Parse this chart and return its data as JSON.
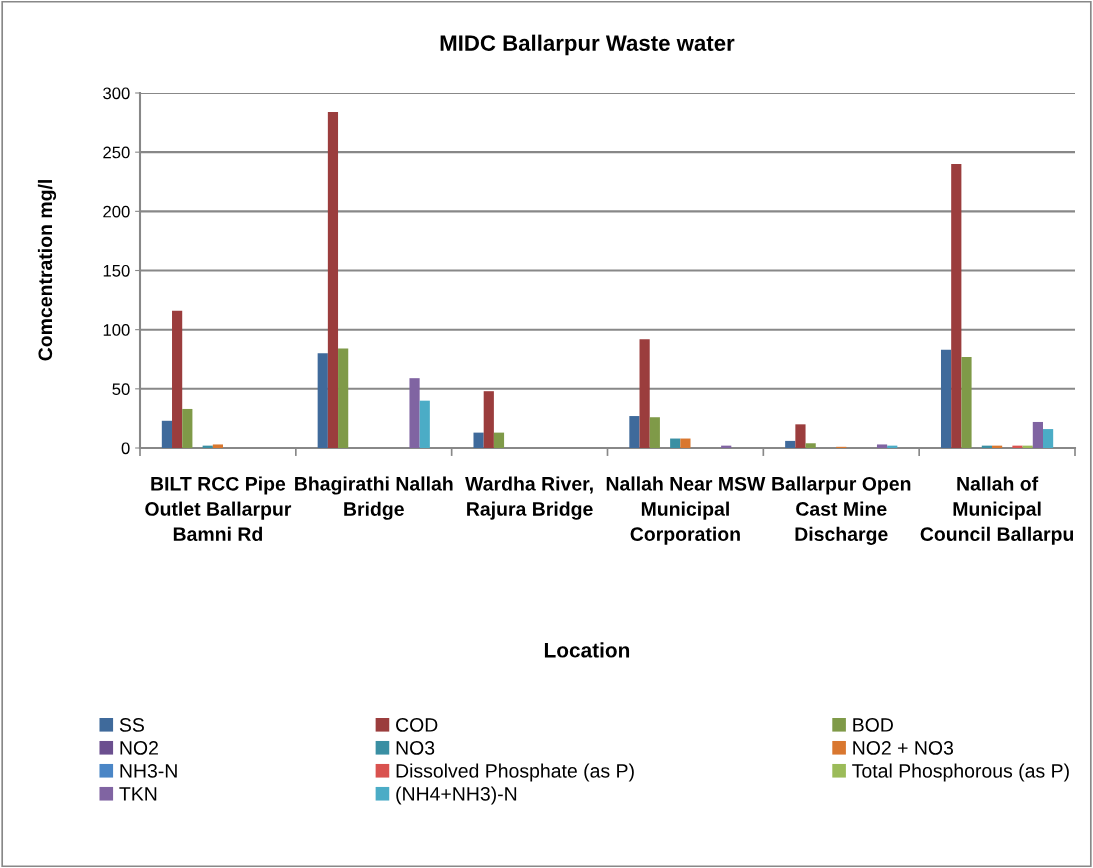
{
  "chart_data": {
    "type": "bar",
    "title": "MIDC Ballarpur Waste water",
    "xlabel": "Location",
    "ylabel": "Comcentration mg/l",
    "categories": [
      "BILT RCC Pipe Outlet Ballarpur Bamni Rd",
      "Bhagirathi Nallah Bridge",
      "Wardha River, Rajura Bridge",
      "Nallah Near MSW Municipal Corporation",
      "Ballarpur Open Cast Mine Discharge",
      "Nallah of Municipal Council Ballarpu"
    ],
    "series": [
      {
        "name": "SS",
        "color": "#3f6a9b",
        "values": [
          23,
          80,
          13,
          27,
          6,
          83
        ]
      },
      {
        "name": "COD",
        "color": "#9b3d3d",
        "values": [
          116,
          284,
          48,
          92,
          20,
          240
        ]
      },
      {
        "name": "BOD",
        "color": "#7f9a48",
        "values": [
          33,
          84,
          13,
          26,
          4,
          77
        ]
      },
      {
        "name": "NO2",
        "color": "#6b4f8f",
        "values": [
          null,
          null,
          null,
          null,
          null,
          null
        ]
      },
      {
        "name": "NO3",
        "color": "#3a8fa3",
        "values": [
          2,
          null,
          null,
          8,
          null,
          2
        ]
      },
      {
        "name": "NO2 + NO3",
        "color": "#d9772f",
        "values": [
          3,
          null,
          null,
          8,
          1,
          2
        ]
      },
      {
        "name": "NH3-N",
        "color": "#4a86c6",
        "values": [
          null,
          null,
          null,
          null,
          null,
          null
        ]
      },
      {
        "name": "Dissolved Phosphate (as P)",
        "color": "#d9524f",
        "values": [
          null,
          null,
          null,
          null,
          null,
          2
        ]
      },
      {
        "name": "Total Phosphorous (as P)",
        "color": "#9bbb59",
        "values": [
          null,
          null,
          null,
          null,
          null,
          2
        ]
      },
      {
        "name": "TKN",
        "color": "#8064a2",
        "values": [
          null,
          59,
          null,
          2,
          3,
          22
        ]
      },
      {
        "name": "(NH4+NH3)-N",
        "color": "#4bacc6",
        "values": [
          null,
          40,
          null,
          null,
          2,
          16
        ]
      }
    ],
    "ylim": [
      0,
      300
    ],
    "yticks": [
      0,
      50,
      100,
      150,
      200,
      250,
      300
    ],
    "grid": "y",
    "legend": "bottom"
  }
}
